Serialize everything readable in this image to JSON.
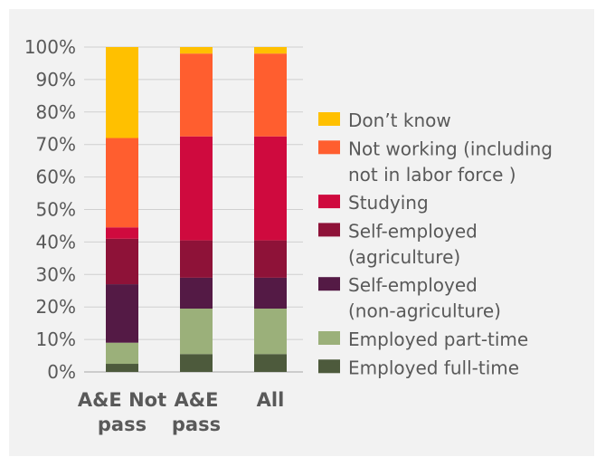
{
  "chart_data": {
    "type": "bar",
    "stacked": true,
    "normalized_percent": true,
    "categories": [
      {
        "lines": [
          "A&E Not",
          "pass"
        ]
      },
      {
        "lines": [
          "A&E",
          "pass"
        ]
      },
      {
        "lines": [
          "All"
        ]
      }
    ],
    "series": [
      {
        "name": "Employed full-time",
        "legend_lines": [
          "Employed full-time"
        ],
        "color": "#4d5a3c",
        "values": [
          2.5,
          5.5,
          5.5
        ]
      },
      {
        "name": "Employed part-time",
        "legend_lines": [
          "Employed part-time"
        ],
        "color": "#9bb07a",
        "values": [
          6.5,
          14,
          14
        ]
      },
      {
        "name": "Self-employed (non-agriculture)",
        "legend_lines": [
          "Self-employed",
          "(non-agriculture)"
        ],
        "color": "#541a45",
        "values": [
          18,
          9.5,
          9.5
        ]
      },
      {
        "name": "Self-employed (agriculture)",
        "legend_lines": [
          "Self-employed",
          "(agriculture)"
        ],
        "color": "#8e1238",
        "values": [
          14,
          11.5,
          11.5
        ]
      },
      {
        "name": "Studying",
        "legend_lines": [
          "Studying"
        ],
        "color": "#cf0a3e",
        "values": [
          3.5,
          32,
          32
        ]
      },
      {
        "name": "Not working (including not in labor force)",
        "legend_lines": [
          "Not working (including",
          "not in labor force )"
        ],
        "color": "#ff5e2f",
        "values": [
          27.5,
          25.5,
          25.5
        ]
      },
      {
        "name": "Don’t know",
        "legend_lines": [
          "Don’t know"
        ],
        "color": "#ffc000",
        "values": [
          28,
          2,
          2
        ]
      }
    ],
    "y_ticks": [
      "0%",
      "10%",
      "20%",
      "30%",
      "40%",
      "50%",
      "60%",
      "70%",
      "80%",
      "90%",
      "100%"
    ],
    "ylim": [
      0,
      100
    ],
    "grid": true,
    "legend_position": "right",
    "title": "",
    "xlabel": "",
    "ylabel": ""
  }
}
